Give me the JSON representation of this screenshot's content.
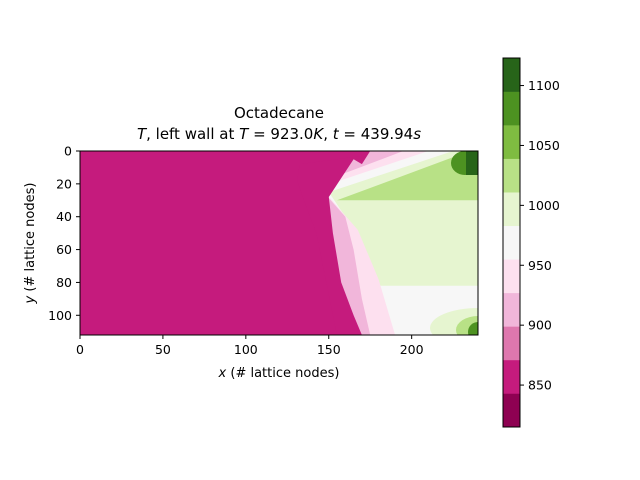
{
  "chart_data": {
    "type": "heatmap",
    "title_line1": "Octadecane",
    "title_line2": {
      "var": "T",
      "mid": ", left wall at ",
      "eq1_lhs": "T",
      "eq1_rhs": "923.0",
      "eq1_unit": "K",
      "sep": ", ",
      "eq2_lhs": "t",
      "eq2_rhs": "439.94",
      "eq2_unit": "s"
    },
    "xlabel": {
      "var": "x",
      "rest": " (# lattice nodes)"
    },
    "ylabel": {
      "var": "y",
      "rest": " (# lattice nodes)"
    },
    "xlim": [
      0,
      240
    ],
    "ylim": [
      112,
      0
    ],
    "xticks": [
      0,
      50,
      100,
      150,
      200
    ],
    "yticks": [
      0,
      20,
      40,
      60,
      80,
      100
    ],
    "colorbar": {
      "levels": [
        815,
        843,
        871,
        899,
        927,
        955,
        983,
        1011,
        1039,
        1067,
        1095,
        1123
      ],
      "colors": [
        "#8e0152",
        "#c51b7d",
        "#de77ae",
        "#f1b6da",
        "#fde0ef",
        "#f7f7f7",
        "#e6f5d0",
        "#b8e186",
        "#7fbc41",
        "#4d9221",
        "#276419"
      ],
      "ticks": [
        850,
        900,
        950,
        1000,
        1050,
        1100
      ]
    },
    "field_bands": [
      {
        "level": 845,
        "points": [
          [
            0,
            0
          ],
          [
            340,
            0
          ],
          [
            340,
            3
          ],
          [
            265,
            8
          ],
          [
            262,
            18
          ],
          [
            270,
            30
          ],
          [
            285,
            50
          ],
          [
            297,
            80
          ],
          [
            305,
            100
          ],
          [
            310,
            112
          ],
          [
            0,
            112
          ]
        ]
      },
      {
        "level": 870,
        "points": [
          [
            0,
            0
          ],
          [
            350,
            0
          ],
          [
            340,
            8
          ],
          [
            330,
            5
          ],
          [
            300,
            28
          ],
          [
            305,
            50
          ],
          [
            315,
            80
          ],
          [
            330,
            100
          ],
          [
            340,
            112
          ],
          [
            0,
            112
          ]
        ]
      },
      {
        "level": 905,
        "points": [
          [
            0,
            0
          ],
          [
            390,
            0
          ],
          [
            285,
            20
          ],
          [
            320,
            40
          ],
          [
            330,
            60
          ],
          [
            340,
            90
          ],
          [
            350,
            112
          ],
          [
            0,
            112
          ]
        ]
      },
      {
        "level": 935,
        "points": [
          [
            0,
            0
          ],
          [
            420,
            0
          ],
          [
            290,
            22
          ],
          [
            335,
            48
          ],
          [
            345,
            60
          ],
          [
            360,
            78
          ],
          [
            380,
            112
          ],
          [
            0,
            112
          ]
        ]
      },
      {
        "level": 962,
        "points": [
          [
            0,
            0
          ],
          [
            450,
            0
          ],
          [
            300,
            25
          ],
          [
            340,
            55
          ],
          [
            350,
            68
          ],
          [
            355,
            82
          ],
          [
            480,
            82
          ],
          [
            480,
            112
          ],
          [
            0,
            112
          ]
        ]
      },
      {
        "level": 990,
        "points": [
          [
            0,
            0
          ],
          [
            470,
            0
          ],
          [
            310,
            30
          ],
          [
            480,
            30
          ],
          [
            480,
            112
          ],
          [
            0,
            112
          ]
        ]
      },
      {
        "level": 1020,
        "points": [
          [
            0,
            0
          ],
          [
            480,
            0
          ],
          [
            480,
            25
          ],
          [
            295,
            25
          ],
          [
            300,
            18
          ],
          [
            330,
            12
          ],
          [
            480,
            12
          ],
          [
            480,
            112
          ],
          [
            0,
            112
          ]
        ]
      }
    ]
  }
}
